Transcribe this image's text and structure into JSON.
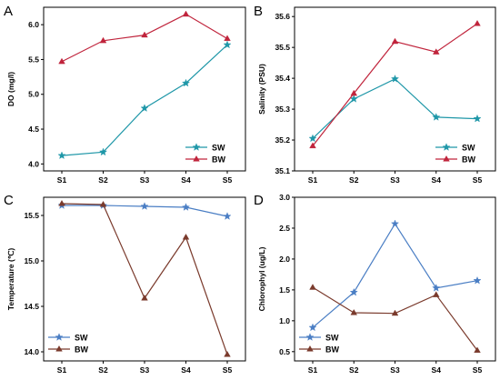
{
  "chart_data": [
    {
      "type": "line",
      "panel_label": "A",
      "ylabel": "DO (mg/l)",
      "categories": [
        "S1",
        "S2",
        "S3",
        "S4",
        "S5"
      ],
      "ylim": [
        3.9,
        6.25
      ],
      "yticks": [
        4.0,
        4.5,
        5.0,
        5.5,
        6.0
      ],
      "ytick_labels": [
        "4.0",
        "4.5",
        "5.0",
        "5.5",
        "6.0"
      ],
      "legend_position": "bottom-right",
      "series": [
        {
          "name": "SW",
          "color": "#1f97a8",
          "marker": "star",
          "values": [
            4.12,
            4.17,
            4.8,
            5.16,
            5.71
          ]
        },
        {
          "name": "BW",
          "color": "#c0243c",
          "marker": "triangle",
          "values": [
            5.47,
            5.77,
            5.85,
            6.15,
            5.8
          ]
        }
      ]
    },
    {
      "type": "line",
      "panel_label": "B",
      "ylabel": "Salinity (PSU)",
      "categories": [
        "S1",
        "S2",
        "S3",
        "S4",
        "S5"
      ],
      "ylim": [
        35.1,
        35.63
      ],
      "yticks": [
        35.1,
        35.2,
        35.3,
        35.4,
        35.5,
        35.6
      ],
      "ytick_labels": [
        "35.1",
        "35.2",
        "35.3",
        "35.4",
        "35.5",
        "35.6"
      ],
      "legend_position": "bottom-right",
      "series": [
        {
          "name": "SW",
          "color": "#1f97a8",
          "marker": "star",
          "values": [
            35.205,
            35.333,
            35.398,
            35.274,
            35.269
          ]
        },
        {
          "name": "BW",
          "color": "#c0243c",
          "marker": "triangle",
          "values": [
            35.181,
            35.351,
            35.519,
            35.485,
            35.577
          ]
        }
      ]
    },
    {
      "type": "line",
      "panel_label": "C",
      "ylabel": "Temperature (℃)",
      "categories": [
        "S1",
        "S2",
        "S3",
        "S4",
        "S5"
      ],
      "ylim": [
        13.9,
        15.7
      ],
      "yticks": [
        14.0,
        14.5,
        15.0,
        15.5
      ],
      "ytick_labels": [
        "14.0",
        "14.5",
        "15.0",
        "15.5"
      ],
      "legend_position": "bottom-left",
      "series": [
        {
          "name": "SW",
          "color": "#4a7ec4",
          "marker": "star",
          "values": [
            15.61,
            15.61,
            15.6,
            15.59,
            15.49
          ]
        },
        {
          "name": "BW",
          "color": "#7a3a2c",
          "marker": "triangle",
          "values": [
            15.63,
            15.62,
            14.59,
            15.26,
            13.97
          ]
        }
      ]
    },
    {
      "type": "line",
      "panel_label": "D",
      "ylabel": "Chlorophyl (ug/L)",
      "categories": [
        "S1",
        "S2",
        "S3",
        "S4",
        "S5"
      ],
      "ylim": [
        0.35,
        3.0
      ],
      "yticks": [
        0.5,
        1.0,
        1.5,
        2.0,
        2.5,
        3.0
      ],
      "ytick_labels": [
        "0.5",
        "1.0",
        "1.5",
        "2.0",
        "2.5",
        "3.0"
      ],
      "legend_position": "bottom-left",
      "series": [
        {
          "name": "SW",
          "color": "#4a7ec4",
          "marker": "star",
          "values": [
            0.89,
            1.46,
            2.57,
            1.53,
            1.65
          ]
        },
        {
          "name": "BW",
          "color": "#7a3a2c",
          "marker": "triangle",
          "values": [
            1.54,
            1.13,
            1.12,
            1.42,
            0.52
          ]
        }
      ]
    }
  ]
}
